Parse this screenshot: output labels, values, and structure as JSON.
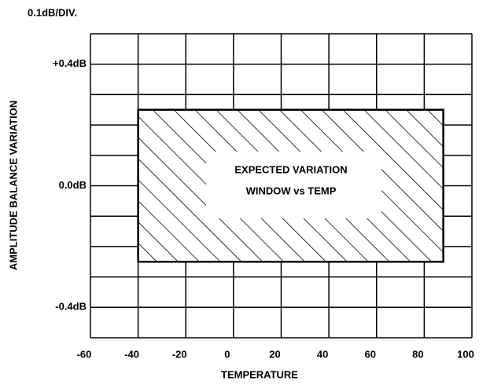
{
  "chart_data": {
    "type": "region",
    "title": "0.1dB/DIV.",
    "xlabel": "TEMPERATURE",
    "ylabel": "AMPLITUDE BALANCE VARIATION",
    "annotations": [
      "EXPECTED VARIATION",
      "WINDOW vs TEMP"
    ],
    "window": {
      "x": [
        -40,
        88
      ],
      "y": [
        -0.25,
        0.25
      ]
    },
    "xlim": [
      -60,
      100
    ],
    "xticks": [
      -60,
      -40,
      -20,
      0,
      20,
      40,
      60,
      80,
      100
    ],
    "ylim": [
      -0.5,
      0.5
    ],
    "yticks": [
      {
        "value": 0.4,
        "label": "+0.4dB"
      },
      {
        "value": 0,
        "label": "0.0dB"
      },
      {
        "value": -0.4,
        "label": "-0.4dB"
      }
    ],
    "y_minor_ticks": [
      -0.5,
      -0.3,
      -0.2,
      -0.1,
      0.1,
      0.2,
      0.3,
      0.5
    ],
    "grid": true,
    "color": "#000000"
  }
}
